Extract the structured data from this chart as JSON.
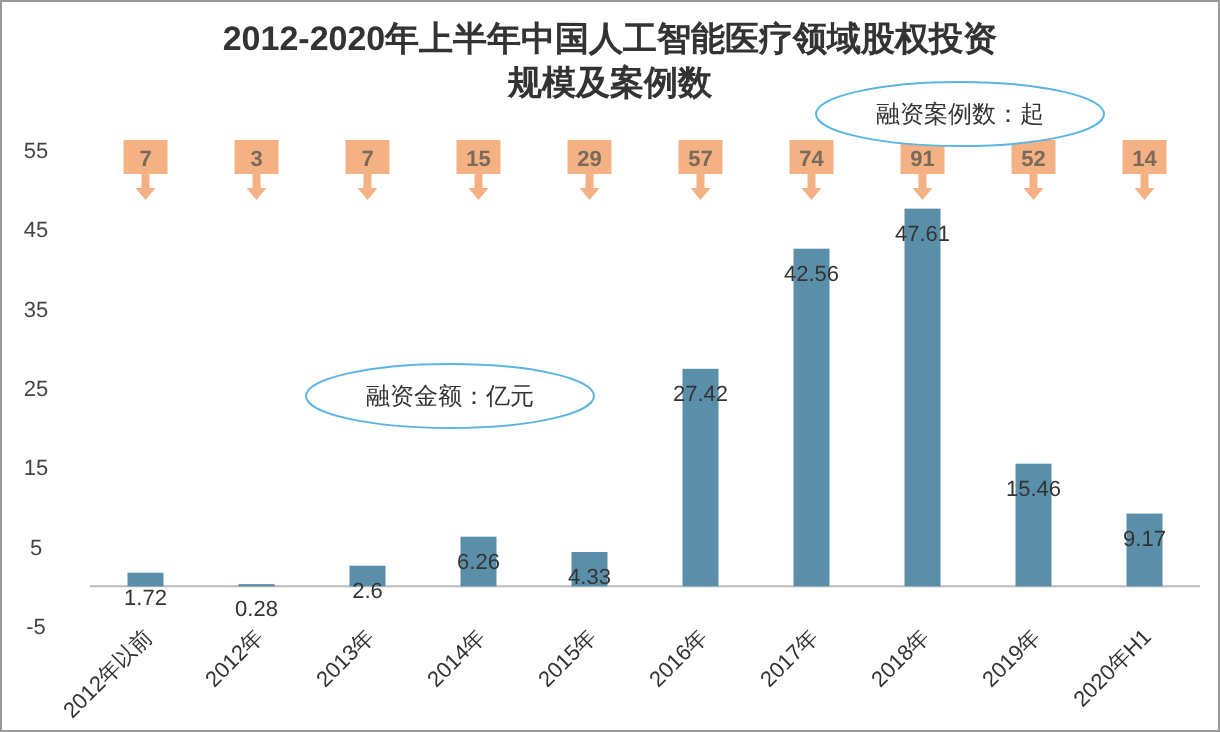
{
  "chart_data": {
    "type": "bar",
    "title": "2012-2020年上半年中国人工智能医疗领域股权投资规模及案例数",
    "categories": [
      "2012年以前",
      "2012年",
      "2013年",
      "2014年",
      "2015年",
      "2016年",
      "2017年",
      "2018年",
      "2019年",
      "2020年H1"
    ],
    "values": [
      1.72,
      0.28,
      2.6,
      6.26,
      4.33,
      27.42,
      42.56,
      47.61,
      15.46,
      9.17
    ],
    "color": "#5b8fa9",
    "data_labels": true,
    "ylim": [
      -5,
      55
    ],
    "yticks": [
      -5,
      5,
      15,
      25,
      35,
      45,
      55
    ],
    "grid": false,
    "annotations": [
      "融资金额：亿元",
      "融资案例数：起",
      "7",
      "3",
      "7",
      "15",
      "29",
      "57",
      "74",
      "91",
      "52",
      "14"
    ]
  }
}
